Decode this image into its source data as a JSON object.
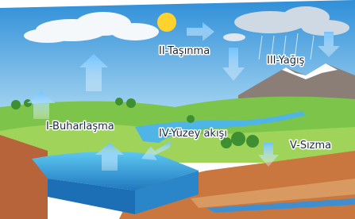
{
  "labels": [
    "I-Buharlaşma",
    "II-Taşınma",
    "III-Yağış",
    "IV-Yüzey akışı",
    "V-Sızma"
  ]
}
